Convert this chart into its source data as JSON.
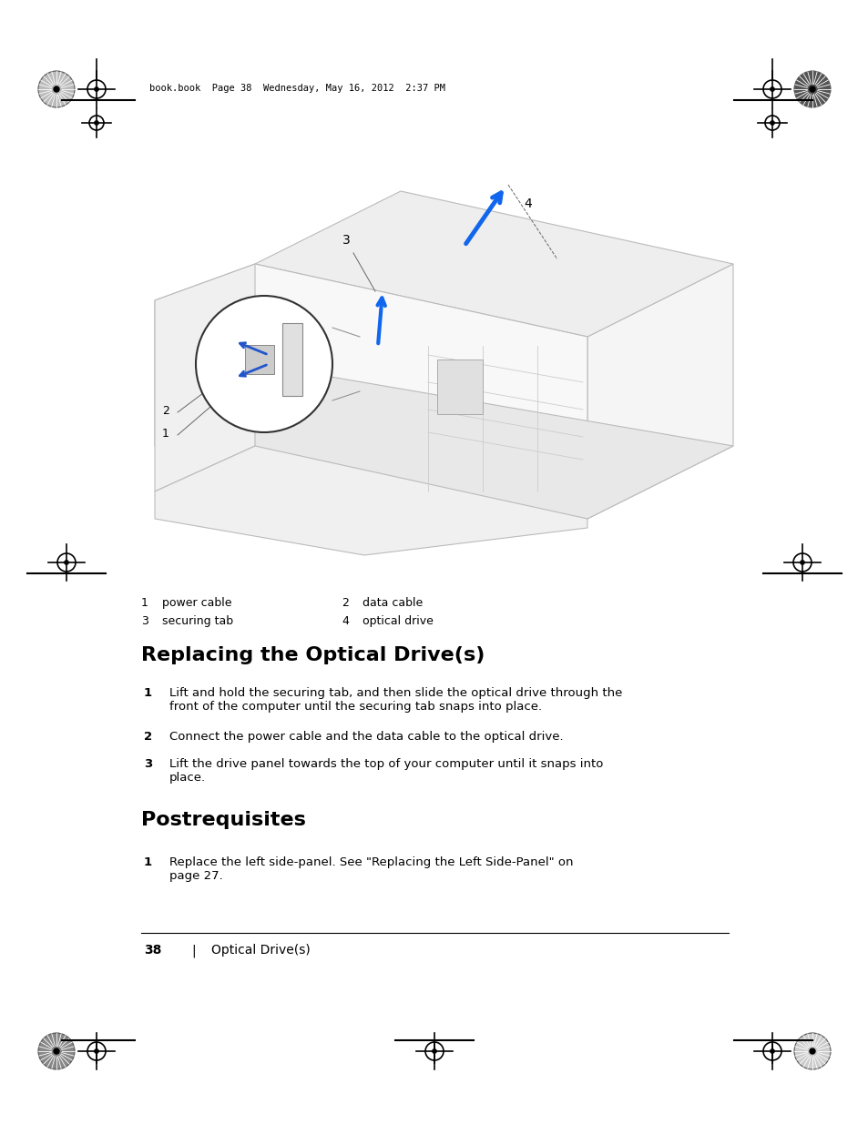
{
  "bg_color": "#ffffff",
  "page_width": 9.54,
  "page_height": 12.35,
  "header_text": "book.book  Page 38  Wednesday, May 16, 2012  2:37 PM",
  "caption_items": [
    {
      "num": "1",
      "label": "power cable"
    },
    {
      "num": "2",
      "label": "data cable"
    },
    {
      "num": "3",
      "label": "securing tab"
    },
    {
      "num": "4",
      "label": "optical drive"
    }
  ],
  "section1_title": "Replacing the Optical Drive(s)",
  "section1_items": [
    {
      "num": "1",
      "text": "Lift and hold the securing tab, and then slide the optical drive through the\nfront of the computer until the securing tab snaps into place."
    },
    {
      "num": "2",
      "text": "Connect the power cable and the data cable to the optical drive."
    },
    {
      "num": "3",
      "text": "Lift the drive panel towards the top of your computer until it snaps into\nplace."
    }
  ],
  "section2_title": "Postrequisites",
  "section2_items": [
    {
      "num": "1",
      "text": "Replace the left side-panel. See \"Replacing the Left Side-Panel\" on\npage 27."
    }
  ],
  "footer_page": "38",
  "footer_sep": "|",
  "footer_text": "Optical Drive(s)"
}
